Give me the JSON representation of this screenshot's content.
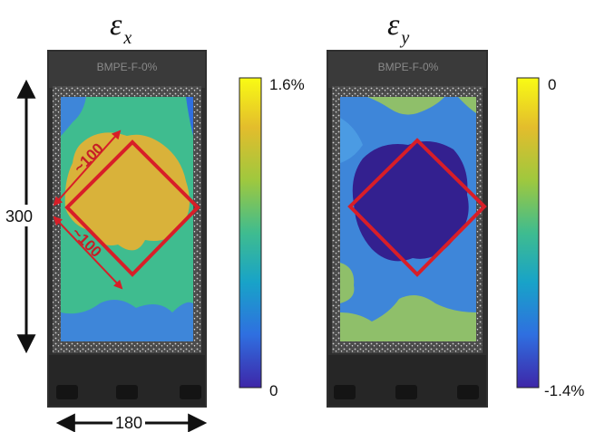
{
  "panels": [
    {
      "symbol": "ε",
      "subscript": "x",
      "colorbar": {
        "max_label": "1.6%",
        "min_label": "0"
      },
      "specimen_label": "BMPE-F-0%",
      "diagonal_dims": [
        "~100",
        "~100"
      ]
    },
    {
      "symbol": "ε",
      "subscript": "y",
      "colorbar": {
        "max_label": "0",
        "min_label": "-1.4%"
      },
      "specimen_label": "BMPE-F-0%"
    }
  ],
  "dimensions": {
    "height": "300",
    "width": "180"
  },
  "colors": {
    "colormap": [
      "#3e26a8",
      "#2f6fe0",
      "#18a3c8",
      "#3fbc8f",
      "#9fc83e",
      "#e3bd2c",
      "#f9fb14"
    ],
    "outline": "#d81e28",
    "grip": "#2c2c2c",
    "speckle": "#4a4a4a"
  }
}
